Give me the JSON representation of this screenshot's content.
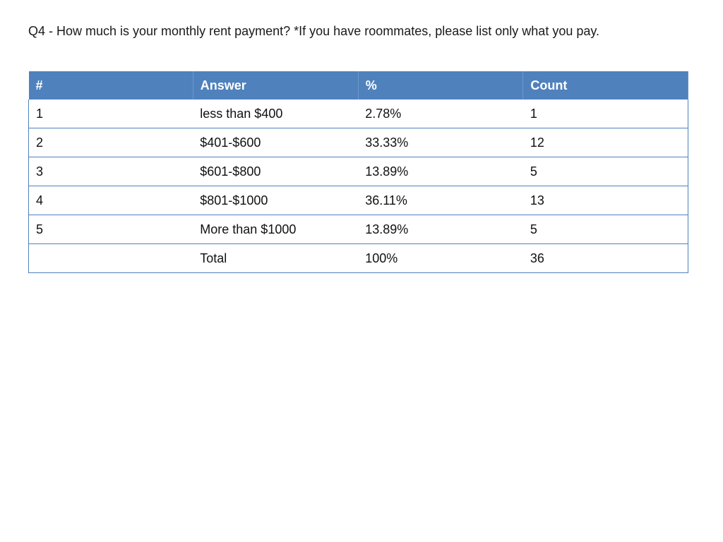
{
  "title": "Q4 - How much is your monthly rent payment? *If you have roommates, please list only what you pay.",
  "table": {
    "header": [
      "#",
      "Answer",
      "%",
      "Count"
    ],
    "rows": [
      [
        "1",
        "less than $400",
        "2.78%",
        "1"
      ],
      [
        "2",
        "$401-$600",
        "33.33%",
        "12"
      ],
      [
        "3",
        "$601-$800",
        "13.89%",
        "5"
      ],
      [
        "4",
        "$801-$1000",
        "36.11%",
        "13"
      ],
      [
        "5",
        "More than $1000",
        "13.89%",
        "5"
      ]
    ],
    "total": {
      "label": "Total",
      "percent": "100%",
      "count": "36"
    }
  }
}
